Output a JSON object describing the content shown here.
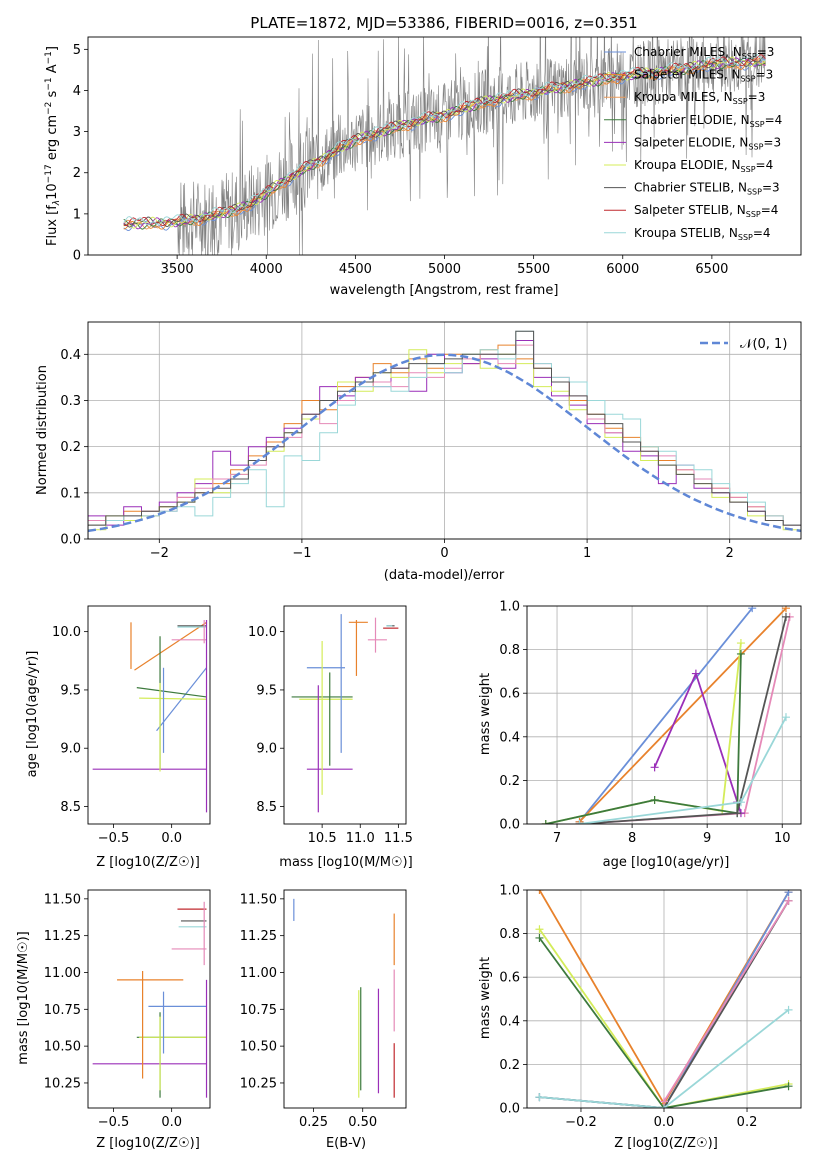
{
  "chart_data": [
    {
      "id": "spectrum",
      "type": "line",
      "title": "PLATE=1872, MJD=53386, FIBERID=0016, z=0.351",
      "xlabel": "wavelength [Angstrom, rest frame]",
      "ylabel": "Flux [f_λ 10^-17 erg cm^-2 s^-1 A^-1]",
      "xlim": [
        3000,
        7000
      ],
      "ylim": [
        0,
        5.3
      ],
      "xticks": [
        3500,
        4000,
        4500,
        5000,
        5500,
        6000,
        6500
      ],
      "yticks": [
        0,
        1,
        2,
        3,
        4,
        5
      ],
      "legend_position": "right",
      "legend": [
        {
          "label": "Chabrier MILES, N_SSP=3",
          "color": "#6a8fd8"
        },
        {
          "label": "Salpeter MILES, N_SSP=3",
          "color": "#e8822c"
        },
        {
          "label": "Kroupa MILES, N_SSP=3",
          "color": "#e89a5a"
        },
        {
          "label": "Chabrier ELODIE, N_SSP=4",
          "color": "#3d7a3d"
        },
        {
          "label": "Salpeter ELODIE, N_SSP=3",
          "color": "#9a2fb8"
        },
        {
          "label": "Kroupa ELODIE, N_SSP=4",
          "color": "#d4ec5a"
        },
        {
          "label": "Chabrier STELIB, N_SSP=3",
          "color": "#555555"
        },
        {
          "label": "Salpeter STELIB, N_SSP=4",
          "color": "#c0282e"
        },
        {
          "label": "Kroupa STELIB, N_SSP=4",
          "color": "#9ad7d8"
        }
      ],
      "data_color": "#808080",
      "model_profile": {
        "x": [
          3200,
          3500,
          3700,
          3900,
          4000,
          4100,
          4300,
          4500,
          4800,
          5000,
          5200,
          5500,
          5800,
          6000,
          6300,
          6500,
          6800
        ],
        "y": [
          0.75,
          0.8,
          0.95,
          1.2,
          1.5,
          1.8,
          2.3,
          2.8,
          3.2,
          3.4,
          3.7,
          3.95,
          4.2,
          4.35,
          4.5,
          4.65,
          4.7
        ]
      }
    },
    {
      "id": "residuals",
      "type": "line",
      "xlabel": "(data-model)/error",
      "ylabel": "Normed distribution",
      "xlim": [
        -2.5,
        2.5
      ],
      "ylim": [
        0,
        0.47
      ],
      "xticks": [
        -2,
        -1,
        0,
        1,
        2
      ],
      "yticks": [
        0.0,
        0.1,
        0.2,
        0.3,
        0.4
      ],
      "grid": true,
      "legend_position": "top-right",
      "normal_label": "𝒩(0, 1)",
      "normal_color": "#5f87d6",
      "series": [
        {
          "color": "#e8822c",
          "values": [
            0.03,
            0.04,
            0.06,
            0.05,
            0.07,
            0.09,
            0.1,
            0.12,
            0.15,
            0.18,
            0.21,
            0.25,
            0.3,
            0.28,
            0.33,
            0.35,
            0.38,
            0.36,
            0.39,
            0.37,
            0.4,
            0.38,
            0.41,
            0.42,
            0.39,
            0.37,
            0.34,
            0.3,
            0.27,
            0.24,
            0.22,
            0.2,
            0.17,
            0.15,
            0.13,
            0.11,
            0.09,
            0.07,
            0.05,
            0.03
          ]
        },
        {
          "color": "#9a2fb8",
          "values": [
            0.05,
            0.03,
            0.07,
            0.06,
            0.08,
            0.1,
            0.12,
            0.19,
            0.16,
            0.2,
            0.22,
            0.24,
            0.27,
            0.33,
            0.31,
            0.35,
            0.33,
            0.37,
            0.32,
            0.4,
            0.36,
            0.38,
            0.39,
            0.37,
            0.43,
            0.35,
            0.31,
            0.29,
            0.25,
            0.23,
            0.19,
            0.18,
            0.12,
            0.16,
            0.11,
            0.1,
            0.08,
            0.06,
            0.04,
            0.03
          ]
        },
        {
          "color": "#d4ec5a",
          "values": [
            0.02,
            0.05,
            0.04,
            0.06,
            0.07,
            0.08,
            0.13,
            0.1,
            0.14,
            0.17,
            0.19,
            0.23,
            0.26,
            0.3,
            0.34,
            0.32,
            0.36,
            0.35,
            0.41,
            0.36,
            0.38,
            0.4,
            0.37,
            0.4,
            0.38,
            0.33,
            0.32,
            0.28,
            0.26,
            0.22,
            0.21,
            0.17,
            0.16,
            0.14,
            0.12,
            0.09,
            0.08,
            0.05,
            0.04,
            0.02
          ]
        },
        {
          "color": "#e58ab8",
          "values": [
            0.04,
            0.04,
            0.05,
            0.06,
            0.06,
            0.09,
            0.11,
            0.13,
            0.14,
            0.16,
            0.2,
            0.22,
            0.27,
            0.25,
            0.3,
            0.33,
            0.34,
            0.33,
            0.36,
            0.35,
            0.37,
            0.39,
            0.4,
            0.38,
            0.42,
            0.38,
            0.35,
            0.31,
            0.26,
            0.23,
            0.21,
            0.19,
            0.18,
            0.15,
            0.13,
            0.11,
            0.09,
            0.07,
            0.05,
            0.03
          ]
        },
        {
          "color": "#9ad7d8",
          "values": [
            0.03,
            0.04,
            0.05,
            0.05,
            0.06,
            0.07,
            0.05,
            0.09,
            0.12,
            0.15,
            0.07,
            0.18,
            0.17,
            0.23,
            0.29,
            0.33,
            0.33,
            0.32,
            0.35,
            0.38,
            0.36,
            0.4,
            0.41,
            0.39,
            0.45,
            0.38,
            0.35,
            0.34,
            0.3,
            0.27,
            0.26,
            0.2,
            0.19,
            0.16,
            0.15,
            0.12,
            0.1,
            0.08,
            0.05,
            0.03
          ]
        },
        {
          "color": "#555555",
          "values": [
            0.03,
            0.05,
            0.05,
            0.06,
            0.07,
            0.08,
            0.1,
            0.11,
            0.13,
            0.17,
            0.2,
            0.23,
            0.27,
            0.3,
            0.32,
            0.34,
            0.36,
            0.37,
            0.38,
            0.38,
            0.39,
            0.4,
            0.4,
            0.4,
            0.45,
            0.37,
            0.34,
            0.31,
            0.27,
            0.25,
            0.21,
            0.19,
            0.16,
            0.14,
            0.12,
            0.1,
            0.08,
            0.06,
            0.04,
            0.03
          ]
        }
      ]
    },
    {
      "id": "age-vs-Z",
      "type": "scatter",
      "xlabel": "Z [log10(Z/Z☉)]",
      "ylabel": "age  [log10(age/yr)]",
      "xlim": [
        -0.72,
        0.33
      ],
      "ylim": [
        8.35,
        10.22
      ],
      "xticks": [
        -0.5,
        0.0
      ],
      "yticks": [
        8.5,
        9.0,
        9.5,
        10.0
      ]
    },
    {
      "id": "age-vs-mass",
      "type": "scatter",
      "xlabel": "mass [log10(M/M☉)]",
      "ylabel": "",
      "xlim": [
        10.0,
        11.6
      ],
      "ylim": [
        8.35,
        10.22
      ],
      "xticks": [
        10.5,
        11.0,
        11.5
      ],
      "yticks": [
        8.5,
        9.0,
        9.5,
        10.0
      ]
    },
    {
      "id": "mass-weight-vs-age",
      "type": "line",
      "xlabel": "age  [log10(age/yr)]",
      "ylabel": "mass weight",
      "xlim": [
        6.6,
        10.25
      ],
      "ylim": [
        0,
        1
      ],
      "xticks": [
        7,
        8,
        9,
        10
      ],
      "yticks": [
        0.0,
        0.2,
        0.4,
        0.6,
        0.8,
        1.0
      ],
      "grid": true,
      "series": [
        {
          "color": "#6a8fd8",
          "x": [
            7.3,
            9.6
          ],
          "y": [
            0.01,
            0.99
          ]
        },
        {
          "color": "#e8822c",
          "x": [
            7.3,
            10.05
          ],
          "y": [
            0.01,
            0.99
          ]
        },
        {
          "color": "#e58ab8",
          "x": [
            7.3,
            9.5,
            10.1
          ],
          "y": [
            0.0,
            0.05,
            0.95
          ]
        },
        {
          "color": "#9a2fb8",
          "x": [
            8.3,
            8.85,
            9.45,
            9.4
          ],
          "y": [
            0.26,
            0.69,
            0.05,
            0.1
          ]
        },
        {
          "color": "#d4ec5a",
          "x": [
            6.85,
            8.3,
            9.2,
            9.45
          ],
          "y": [
            0.0,
            0.11,
            0.06,
            0.83
          ]
        },
        {
          "color": "#3d7a3d",
          "x": [
            6.85,
            8.3,
            9.4,
            9.45
          ],
          "y": [
            0.0,
            0.11,
            0.05,
            0.78
          ]
        },
        {
          "color": "#555555",
          "x": [
            7.3,
            9.4,
            10.05
          ],
          "y": [
            0.0,
            0.05,
            0.95
          ]
        },
        {
          "color": "#9ad7d8",
          "x": [
            7.3,
            9.45,
            10.05
          ],
          "y": [
            0.0,
            0.1,
            0.49
          ]
        }
      ]
    },
    {
      "id": "mass-vs-Z",
      "type": "scatter",
      "xlabel": "Z [log10(Z/Z☉)]",
      "ylabel": "mass [log10(M/M☉)]",
      "xlim": [
        -0.72,
        0.33
      ],
      "ylim": [
        10.08,
        11.56
      ],
      "xticks": [
        -0.5,
        0.0
      ],
      "yticks": [
        10.25,
        10.5,
        10.75,
        11.0,
        11.25,
        11.5
      ]
    },
    {
      "id": "mass-vs-ebv",
      "type": "scatter",
      "xlabel": "E(B-V)",
      "ylabel": "",
      "xlim": [
        0.1,
        0.72
      ],
      "ylim": [
        10.08,
        11.56
      ],
      "xticks": [
        0.25,
        0.5
      ],
      "yticks": [
        10.25,
        10.5,
        10.75,
        11.0,
        11.25,
        11.5
      ]
    },
    {
      "id": "mass-weight-vs-Z",
      "type": "line",
      "xlabel": "Z [log10(Z/Z☉)]",
      "ylabel": "mass weight",
      "xlim": [
        -0.33,
        0.33
      ],
      "ylim": [
        0,
        1
      ],
      "xticks": [
        -0.2,
        0.0,
        0.2
      ],
      "yticks": [
        0.0,
        0.2,
        0.4,
        0.6,
        0.8,
        1.0
      ],
      "grid": true,
      "series": [
        {
          "color": "#e8822c",
          "x": [
            -0.3,
            0.0,
            0.3
          ],
          "y": [
            1.0,
            0.02,
            0.99
          ]
        },
        {
          "color": "#6a8fd8",
          "x": [
            -0.3,
            0.0,
            0.3
          ],
          "y": [
            0.05,
            0.0,
            0.99
          ]
        },
        {
          "color": "#d4ec5a",
          "x": [
            -0.3,
            0.0,
            0.3
          ],
          "y": [
            0.82,
            0.0,
            0.11
          ]
        },
        {
          "color": "#3d7a3d",
          "x": [
            -0.3,
            0.0,
            0.3
          ],
          "y": [
            0.78,
            0.0,
            0.1
          ]
        },
        {
          "color": "#555555",
          "x": [
            -0.3,
            0.0,
            0.3
          ],
          "y": [
            0.05,
            0.0,
            0.95
          ]
        },
        {
          "color": "#9ad7d8",
          "x": [
            -0.3,
            0.0,
            0.3
          ],
          "y": [
            0.05,
            0.0,
            0.45
          ]
        },
        {
          "color": "#e58ab8",
          "x": [
            0.0,
            0.3
          ],
          "y": [
            0.03,
            0.95
          ]
        }
      ]
    }
  ]
}
